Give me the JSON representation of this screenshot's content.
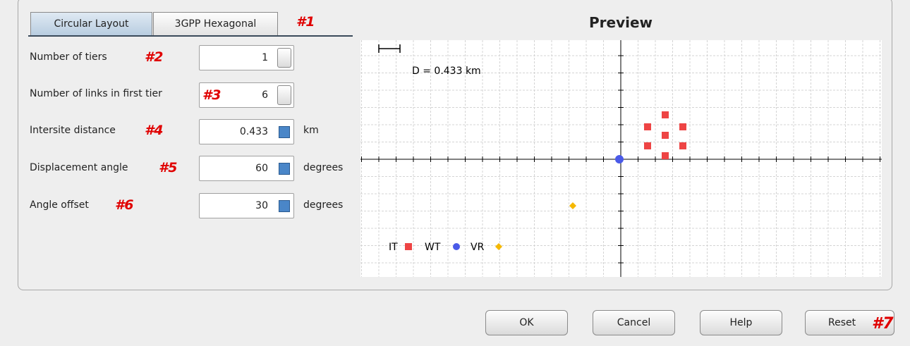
{
  "tabs": [
    "Circular Layout",
    "3GPP Hexagonal"
  ],
  "annotations": [
    "#1",
    "#2",
    "#3",
    "#4",
    "#5",
    "#6",
    "#7"
  ],
  "fields": [
    {
      "label": "Number of tiers",
      "value": "1"
    },
    {
      "label": "Number of links in first tier",
      "value": "6"
    },
    {
      "label": "Intersite distance",
      "value": "0.433",
      "unit": "km"
    },
    {
      "label": "Displacement angle",
      "value": "60",
      "unit": "degrees"
    },
    {
      "label": "Angle offset",
      "value": "30",
      "unit": "degrees"
    }
  ],
  "preview": {
    "title": "Preview",
    "scale_label": "D = 0.433 km",
    "legend": [
      "IT",
      "WT",
      "VR"
    ]
  },
  "buttons": [
    "OK",
    "Cancel",
    "Help",
    "Reset"
  ]
}
